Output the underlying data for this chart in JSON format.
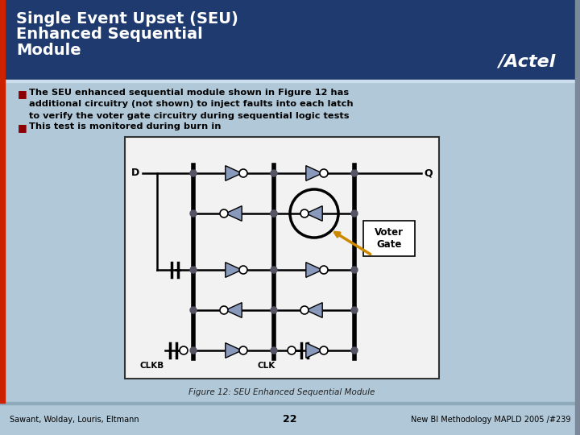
{
  "title_line1": "Single Event Upset (SEU)",
  "title_line2": "Enhanced Sequential",
  "title_line3": "Module",
  "header_bg": "#1e3a6e",
  "content_bg": "#b0c8d8",
  "title_color": "#ffffff",
  "bullet_color": "#8b0000",
  "bullet_text_color": "#000000",
  "bullet1": "The SEU enhanced sequential module shown in Figure 12 has\nadditional circuitry (not shown) to inject faults into each latch\nto verify the voter gate circuitry during sequential logic tests",
  "bullet2": "This test is monitored during burn in",
  "diagram_bg": "#f2f2f2",
  "diagram_border": "#000000",
  "voter_gate_label": "Voter\nGate",
  "figure_caption": "Figure 12: SEU Enhanced Sequential Module",
  "footer_left": "Sawant, Wolday, Louris, Eltmann",
  "footer_center": "22",
  "footer_right": "New BI Methodology MAPLD 2005 /#239",
  "gate_fill": "#8899bb",
  "gate_stroke": "#000000",
  "wire_color": "#000000",
  "dot_color": "#666677",
  "arrow_color": "#cc8800",
  "actel_color": "#ffffff"
}
